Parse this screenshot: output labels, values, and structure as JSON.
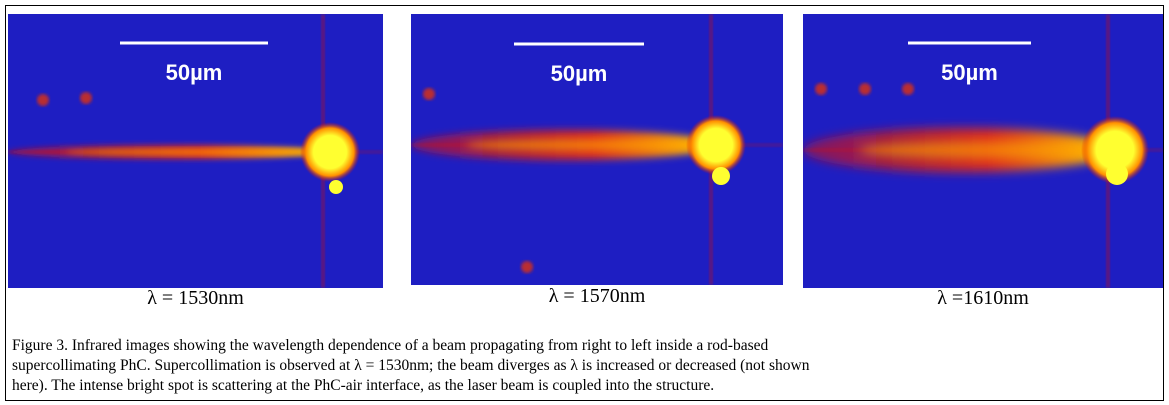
{
  "panels": [
    {
      "scale_label": "50µm",
      "wavelength_label": "λ = 1530nm"
    },
    {
      "scale_label": "50µm",
      "wavelength_label": "λ = 1570nm"
    },
    {
      "scale_label": "50µm",
      "wavelength_label": "λ =1610nm"
    }
  ],
  "caption": {
    "lines": [
      "Figure 3. Infrared images showing the wavelength dependence of a beam propagating from right to left inside a rod-based",
      "supercollimating PhC. Supercollimation is observed at λ = 1530nm; the beam diverges as λ is increased or decreased (not shown",
      "here). The intense bright spot is scattering at the PhC-air interface, as the laser beam is coupled into the structure."
    ]
  }
}
